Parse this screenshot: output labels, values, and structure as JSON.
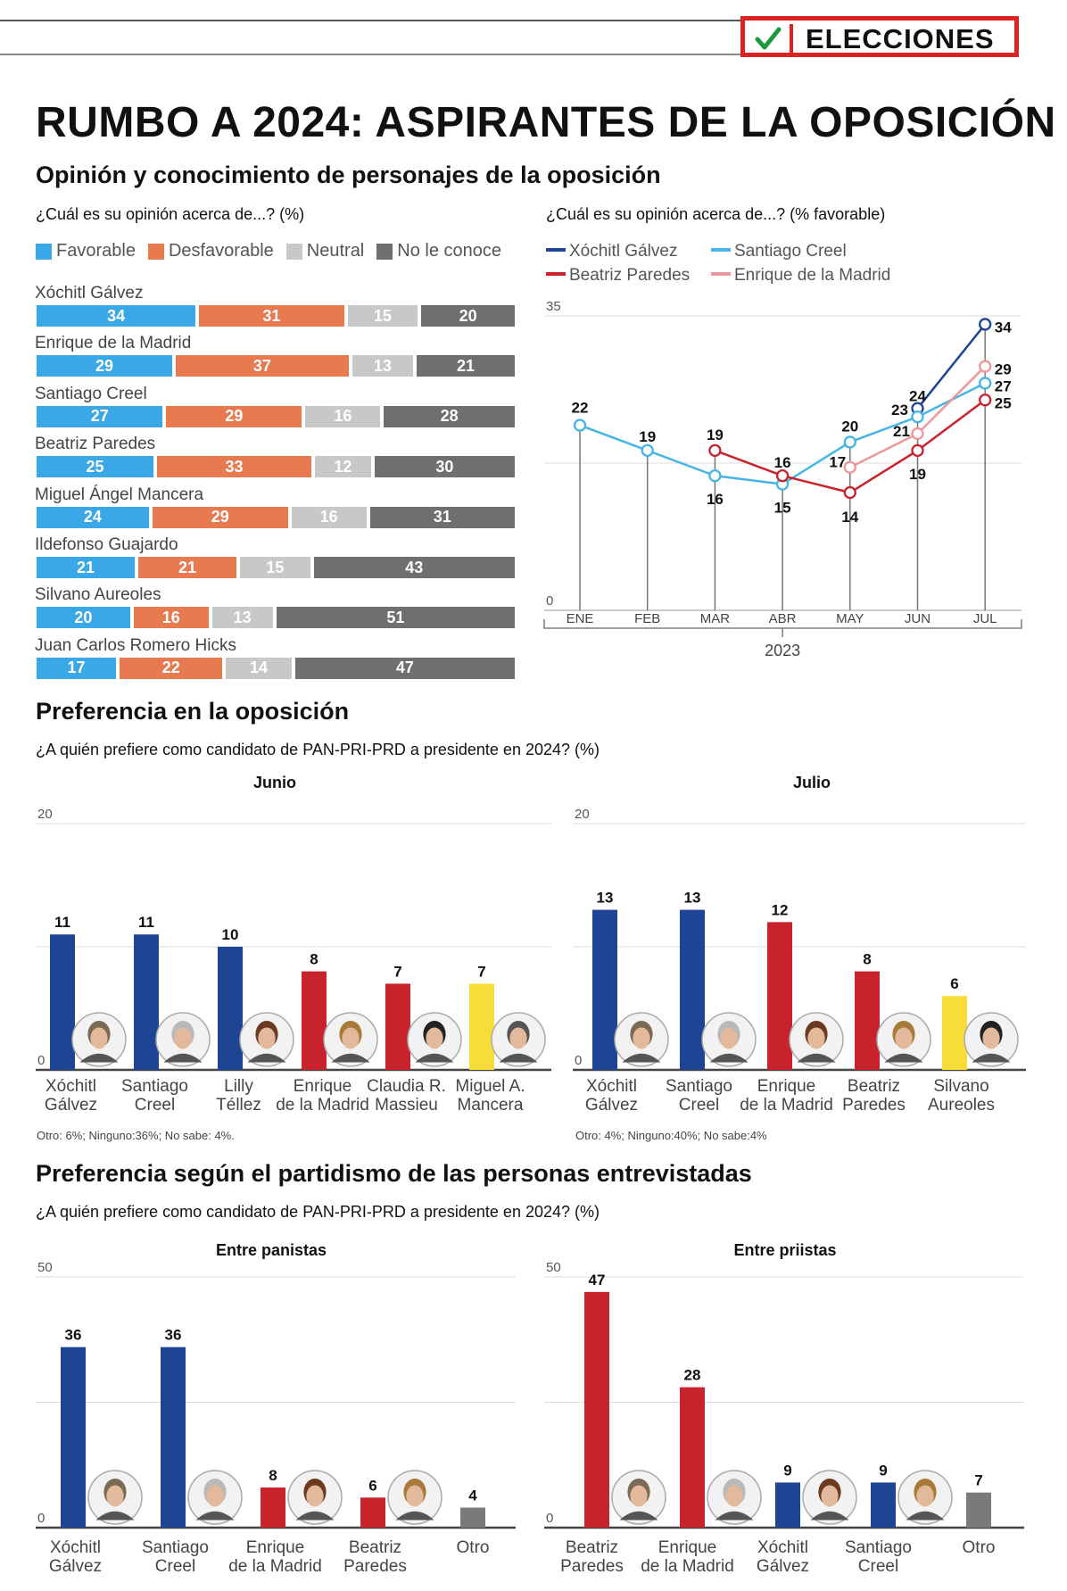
{
  "header": {
    "badge": "ELECCIONES"
  },
  "title": "RUMBO A 2024: ASPIRANTES DE LA OPOSICIÓN",
  "section1": {
    "heading": "Opinión y conocimiento de personajes de la oposición",
    "q_left": "¿Cuál es su opinión acerca de...? (%)",
    "q_right": "¿Cuál es su opinión acerca de...? (% favorable)"
  },
  "colors": {
    "favorable": "#3aa8e6",
    "desfavorable": "#e87a50",
    "neutral": "#c8c8c8",
    "noconoce": "#6f6f6f",
    "pan_blue": "#1e4593",
    "pri_red": "#c8232c",
    "yellow": "#f7dc3a",
    "gray": "#7a7a7a",
    "xochitl": "#1e4593",
    "creel": "#47b4e6",
    "paredes": "#c8232c",
    "delamadrid": "#ef969a"
  },
  "chart_data": [
    {
      "type": "bar",
      "stacked": true,
      "orientation": "horizontal",
      "title": "¿Cuál es su opinión acerca de...? (%)",
      "legend": [
        "Favorable",
        "Desfavorable",
        "Neutral",
        "No le conoce"
      ],
      "categories": [
        "Xóchitl Gálvez",
        "Enrique de la Madrid",
        "Santiago Creel",
        "Beatriz Paredes",
        "Miguel Ángel Mancera",
        "Ildefonso Guajardo",
        "Silvano Aureoles",
        "Juan Carlos Romero Hicks"
      ],
      "series": [
        {
          "name": "Favorable",
          "values": [
            34,
            29,
            27,
            25,
            24,
            21,
            20,
            17
          ]
        },
        {
          "name": "Desfavorable",
          "values": [
            31,
            37,
            29,
            33,
            29,
            21,
            16,
            22
          ]
        },
        {
          "name": "Neutral",
          "values": [
            15,
            13,
            16,
            12,
            16,
            15,
            13,
            14
          ]
        },
        {
          "name": "No le conoce",
          "values": [
            20,
            21,
            28,
            30,
            31,
            43,
            51,
            47
          ]
        }
      ]
    },
    {
      "type": "line",
      "title": "¿Cuál es su opinión acerca de...? (% favorable)",
      "x": [
        "ENE",
        "FEB",
        "MAR",
        "ABR",
        "MAY",
        "JUN",
        "JUL"
      ],
      "xlabel": "2023",
      "ylim": [
        0,
        35
      ],
      "yticks": [
        "0",
        "35"
      ],
      "series": [
        {
          "name": "Xóchitl Gálvez",
          "values": [
            null,
            null,
            null,
            null,
            null,
            24,
            34
          ]
        },
        {
          "name": "Santiago Creel",
          "values": [
            22,
            19,
            16,
            15,
            20,
            23,
            27
          ]
        },
        {
          "name": "Beatriz Paredes",
          "values": [
            null,
            null,
            19,
            16,
            14,
            19,
            25
          ]
        },
        {
          "name": "Enrique de la Madrid",
          "values": [
            null,
            null,
            null,
            null,
            17,
            21,
            29
          ]
        }
      ]
    },
    {
      "type": "bar",
      "title": "Junio",
      "ylim": [
        0,
        20
      ],
      "yticks": [
        "0",
        "20"
      ],
      "categories": [
        "Xóchitl Gálvez",
        "Santiago Creel",
        "Lilly Téllez",
        "Enrique de la Madrid",
        "Claudia R. Massieu",
        "Miguel A. Mancera"
      ],
      "values": [
        11,
        11,
        10,
        8,
        7,
        7
      ],
      "colors": [
        "pan_blue",
        "pan_blue",
        "pan_blue",
        "pri_red",
        "pri_red",
        "yellow"
      ],
      "note": "Otro: 6%; Ninguno:36%; No sabe: 4%."
    },
    {
      "type": "bar",
      "title": "Julio",
      "ylim": [
        0,
        20
      ],
      "yticks": [
        "0",
        "20"
      ],
      "categories": [
        "Xóchitl Gálvez",
        "Santiago Creel",
        "Enrique de la Madrid",
        "Beatriz Paredes",
        "Silvano Aureoles"
      ],
      "values": [
        13,
        13,
        12,
        8,
        6
      ],
      "colors": [
        "pan_blue",
        "pan_blue",
        "pri_red",
        "pri_red",
        "yellow"
      ],
      "note": "Otro: 4%; Ninguno:40%; No sabe:4%"
    },
    {
      "type": "bar",
      "title": "Entre panistas",
      "ylim": [
        0,
        50
      ],
      "yticks": [
        "0",
        "50"
      ],
      "categories": [
        "Xóchitl Gálvez",
        "Santiago Creel",
        "Enrique de la Madrid",
        "Beatriz Paredes",
        "Otro"
      ],
      "values": [
        36,
        36,
        8,
        6,
        4
      ],
      "colors": [
        "pan_blue",
        "pan_blue",
        "pri_red",
        "pri_red",
        "gray"
      ]
    },
    {
      "type": "bar",
      "title": "Entre priistas",
      "ylim": [
        0,
        50
      ],
      "yticks": [
        "0",
        "50"
      ],
      "categories": [
        "Beatriz Paredes",
        "Enrique de la Madrid",
        "Xóchitl Gálvez",
        "Santiago Creel",
        "Otro"
      ],
      "values": [
        47,
        28,
        9,
        9,
        7
      ],
      "colors": [
        "pri_red",
        "pri_red",
        "pan_blue",
        "pan_blue",
        "gray"
      ]
    }
  ],
  "section2": {
    "heading": "Preferencia en la oposición",
    "q": "¿A quién prefiere como candidato de PAN-PRI-PRD a presidente en 2024? (%)"
  },
  "section3": {
    "heading": "Preferencia según el partidismo de las personas entrevistadas",
    "q": "¿A quién prefiere como candidato de PAN-PRI-PRD a presidente en 2024? (%)"
  }
}
